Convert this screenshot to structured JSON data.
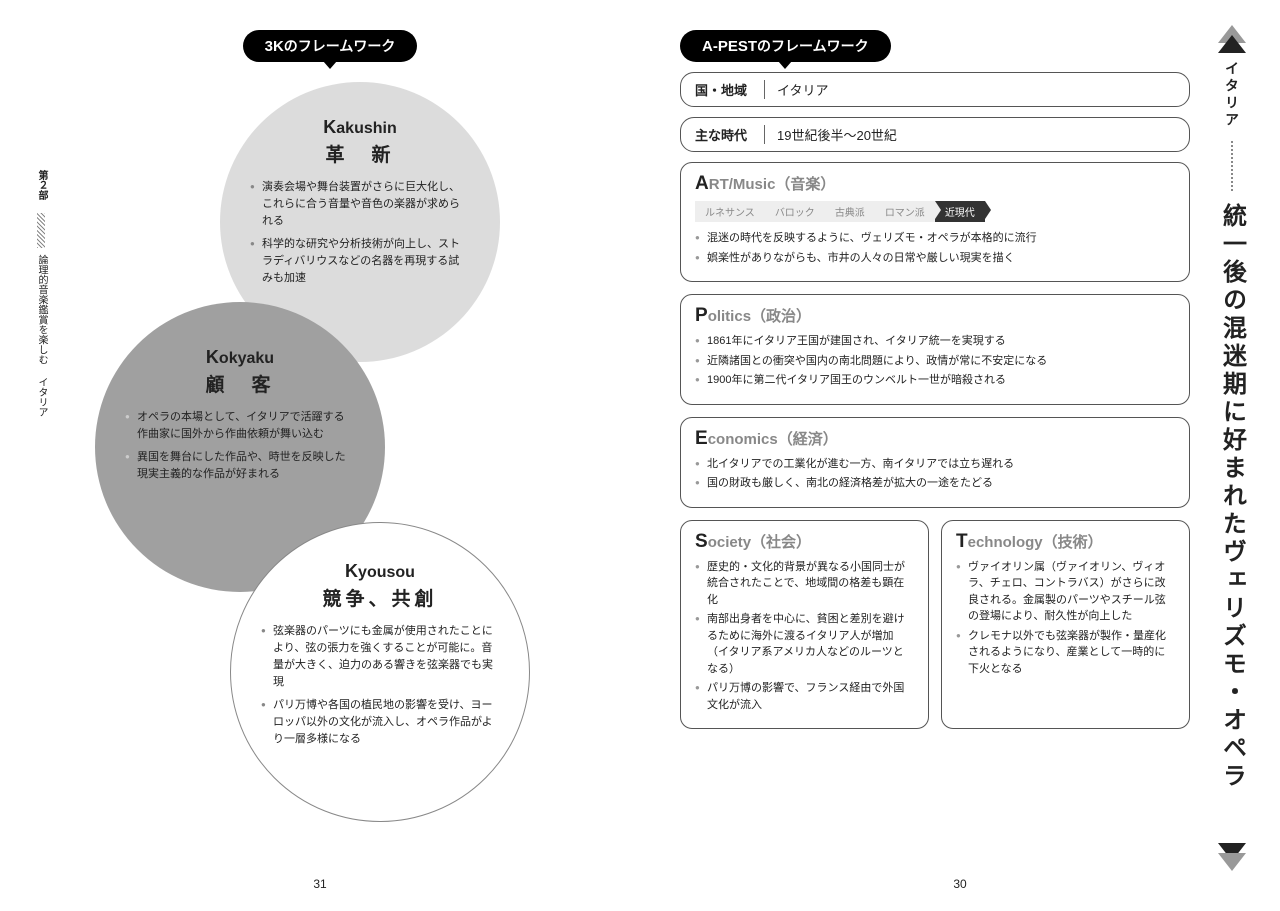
{
  "left": {
    "fw_title_bold": "3K",
    "fw_title_rest": "のフレームワーク",
    "circles": [
      {
        "romaji_k": "K",
        "romaji_rest": "akushin",
        "kanji": "革　新",
        "bullets": [
          "演奏会場や舞台装置がさらに巨大化し、これらに合う音量や音色の楽器が求められる",
          "科学的な研究や分析技術が向上し、ストラディバリウスなどの名器を再現する試みも加速"
        ]
      },
      {
        "romaji_k": "K",
        "romaji_rest": "okyaku",
        "kanji": "顧　客",
        "bullets": [
          "オペラの本場として、イタリアで活躍する作曲家に国外から作曲依頼が舞い込む",
          "異国を舞台にした作品や、時世を反映した現実主義的な作品が好まれる"
        ]
      },
      {
        "romaji_k": "K",
        "romaji_rest": "yousou",
        "kanji": "競争、共創",
        "bullets": [
          "弦楽器のパーツにも金属が使用されたことにより、弦の張力を強くすることが可能に。音量が大きく、迫力のある響きを弦楽器でも実現",
          "パリ万博や各国の植民地の影響を受け、ヨーロッパ以外の文化が流入し、オペラ作品がより一層多様になる"
        ]
      }
    ],
    "margin": {
      "part": "第２部",
      "sub1": "論理的音楽鑑賞を楽しむ",
      "sub2": "イタリア"
    },
    "pagenum": "31"
  },
  "right": {
    "fw_title_bold": "A-PEST",
    "fw_title_rest": "のフレームワーク",
    "info": [
      {
        "label": "国・地域",
        "value": "イタリア"
      },
      {
        "label": "主な時代",
        "value": "19世紀後半〜20世紀"
      }
    ],
    "art": {
      "head_cap": "A",
      "head_rest": "RT/Music（音楽）",
      "eras": [
        "ルネサンス",
        "バロック",
        "古典派",
        "ロマン派",
        "近現代"
      ],
      "era_active": 4,
      "bullets": [
        "混迷の時代を反映するように、ヴェリズモ・オペラが本格的に流行",
        "娯楽性がありながらも、市井の人々の日常や厳しい現実を描く"
      ]
    },
    "politics": {
      "head_cap": "P",
      "head_rest": "olitics（政治）",
      "bullets": [
        "1861年にイタリア王国が建国され、イタリア統一を実現する",
        "近隣諸国との衝突や国内の南北問題により、政情が常に不安定になる",
        "1900年に第二代イタリア国王のウンベルト一世が暗殺される"
      ]
    },
    "economics": {
      "head_cap": "E",
      "head_rest": "conomics（経済）",
      "bullets": [
        "北イタリアでの工業化が進む一方、南イタリアでは立ち遅れる",
        "国の財政も厳しく、南北の経済格差が拡大の一途をたどる"
      ]
    },
    "society": {
      "head_cap": "S",
      "head_rest": "ociety（社会）",
      "bullets": [
        "歴史的・文化的背景が異なる小国同士が統合されたことで、地域間の格差も顕在化",
        "南部出身者を中心に、貧困と差別を避けるために海外に渡るイタリア人が増加（イタリア系アメリカ人などのルーツとなる）",
        "パリ万博の影響で、フランス経由で外国文化が流入"
      ]
    },
    "technology": {
      "head_cap": "T",
      "head_rest": "echnology（技術）",
      "bullets": [
        "ヴァイオリン属（ヴァイオリン、ヴィオラ、チェロ、コントラバス）がさらに改良される。金属製のパーツやスチール弦の登場により、耐久性が向上した",
        "クレモナ以外でも弦楽器が製作・量産化されるようになり、産業として一時的に下火となる"
      ]
    },
    "margin": {
      "country": "イタリア",
      "title": "統一後の混迷期に好まれたヴェリズモ・オペラ"
    },
    "pagenum": "30"
  }
}
